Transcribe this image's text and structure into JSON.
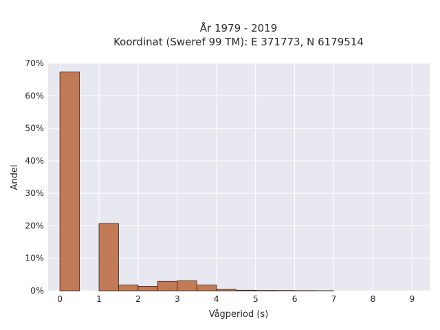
{
  "chart_data": {
    "type": "bar",
    "title_lines": [
      "År 1979 - 2019",
      "Koordinat (Sweref 99 TM): E 371773, N 6179514"
    ],
    "xlabel": "Vågperiod (s)",
    "ylabel": "Andel",
    "xlim": [
      -0.3,
      9.45
    ],
    "ylim": [
      0,
      70
    ],
    "x_ticks": [
      0,
      1,
      2,
      3,
      4,
      5,
      6,
      7,
      8,
      9
    ],
    "y_ticks": [
      0,
      10,
      20,
      30,
      40,
      50,
      60,
      70
    ],
    "y_tick_labels": [
      "0%",
      "10%",
      "20%",
      "30%",
      "40%",
      "50%",
      "60%",
      "70%"
    ],
    "bin_width": 0.5,
    "bins_start": [
      0,
      0.5,
      1,
      1.5,
      2,
      2.5,
      3,
      3.5,
      4,
      4.5,
      5,
      5.5,
      6,
      6.5,
      7,
      7.5,
      8,
      8.5,
      9
    ],
    "values": [
      67.3,
      0,
      20.7,
      1.8,
      1.4,
      2.9,
      3.1,
      1.8,
      0.5,
      0.15,
      0.1,
      0.08,
      0.05,
      0.03,
      0,
      0,
      0,
      0,
      0
    ],
    "grid": true,
    "plot_bg": "#e8e8f0",
    "bar_color": "#c17a55",
    "bar_edge": "#3a2418"
  }
}
